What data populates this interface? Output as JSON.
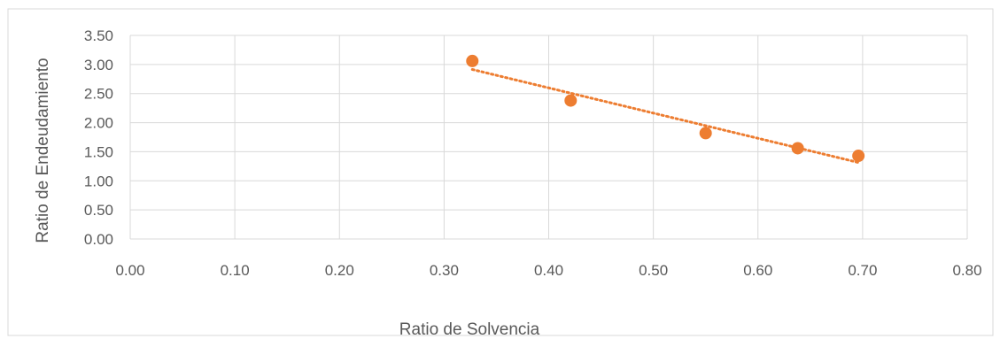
{
  "chart_data": {
    "type": "scatter",
    "title": "",
    "xlabel": "Ratio de Solvencia",
    "ylabel": "Ratio de Endeudamiento",
    "xlim": [
      0,
      0.8
    ],
    "ylim": [
      0,
      3.5
    ],
    "x_ticks": [
      "0.00",
      "0.10",
      "0.20",
      "0.30",
      "0.40",
      "0.50",
      "0.60",
      "0.70",
      "0.80"
    ],
    "y_ticks": [
      "0.00",
      "0.50",
      "1.00",
      "1.50",
      "2.00",
      "2.50",
      "3.00",
      "3.50"
    ],
    "grid": true,
    "legend": "none",
    "series": [
      {
        "points": [
          {
            "x": 0.327,
            "y": 3.06
          },
          {
            "x": 0.421,
            "y": 2.38
          },
          {
            "x": 0.55,
            "y": 1.82
          },
          {
            "x": 0.638,
            "y": 1.56
          },
          {
            "x": 0.696,
            "y": 1.43
          }
        ],
        "color": "#ED7D31",
        "trendline": {
          "type": "linear",
          "style": "dotted"
        }
      }
    ],
    "colors": {
      "gridline": "#D9D9D9",
      "border": "#D9D9D9",
      "text": "#595959",
      "marker": "#ED7D31"
    }
  }
}
